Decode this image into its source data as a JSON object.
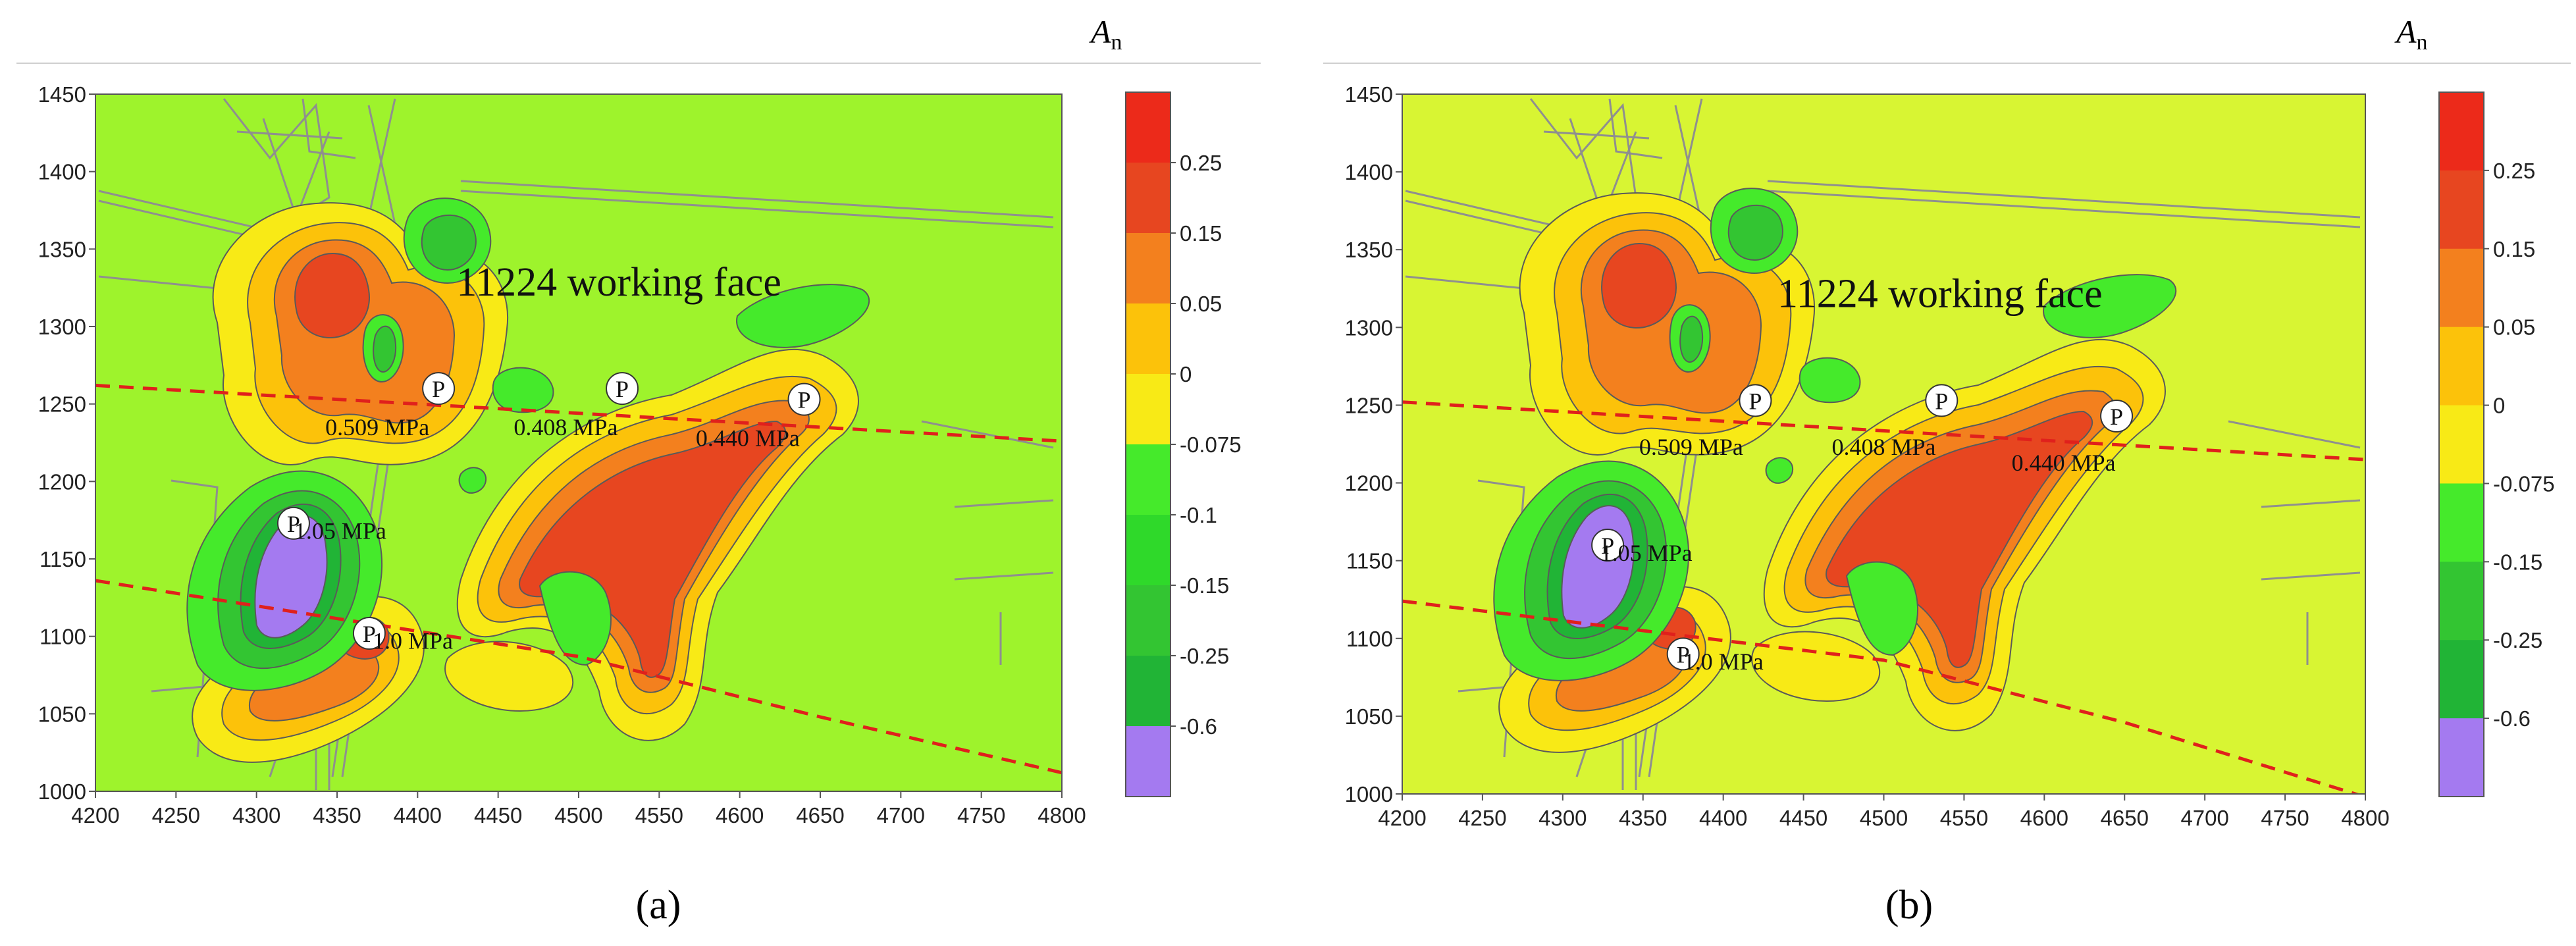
{
  "colors": {
    "background": "#9ef32c",
    "background_b": "#d8f533",
    "band_neg_0075": "#45ea2b",
    "band_neg_01": "#2fd92a",
    "band_neg_015": "#33c532",
    "band_neg_025": "#21b436",
    "band_neg_06": "#a47af0",
    "band_0": "#f8ea16",
    "band_005": "#fcc20a",
    "band_015": "#f3801e",
    "band_025": "#e74620",
    "band_top": "#ec2a1a",
    "dashed_line": "#e0201c"
  },
  "chart_data": [
    {
      "id": "a",
      "type": "heatmap",
      "subcaption": "(a)",
      "legend_title": "A",
      "legend_title_sub": "n",
      "x_range": [
        4200,
        4800
      ],
      "y_range": [
        1000,
        1450
      ],
      "x_ticks": [
        "4200",
        "4250",
        "4300",
        "4350",
        "4400",
        "4450",
        "4500",
        "4550",
        "4600",
        "4650",
        "4700",
        "4750",
        "4800"
      ],
      "y_ticks": [
        "1000",
        "1050",
        "1100",
        "1150",
        "1200",
        "1250",
        "1300",
        "1350",
        "1400",
        "1450"
      ],
      "colorbar_labels": [
        "0.25",
        "0.15",
        "0.05",
        "0",
        "-0.075",
        "-0.1",
        "-0.15",
        "-0.25",
        "-0.6"
      ],
      "working_face_label": "11224 working face",
      "working_face_at": [
        4525,
        1320
      ],
      "pressure_points": [
        {
          "symbol": "P",
          "x": 4413,
          "y": 1260,
          "label": "0.509 MPa",
          "label_at": [
            4375,
            1235
          ]
        },
        {
          "symbol": "P",
          "x": 4527,
          "y": 1260,
          "label": "0.408 MPa",
          "label_at": [
            4492,
            1235
          ]
        },
        {
          "symbol": "P",
          "x": 4640,
          "y": 1253,
          "label": "0.440 MPa",
          "label_at": [
            4605,
            1228
          ]
        },
        {
          "symbol": "P",
          "x": 4323,
          "y": 1173,
          "label": "1.05 MPa",
          "label_at": [
            4352,
            1168
          ]
        },
        {
          "symbol": "P",
          "x": 4370,
          "y": 1102,
          "label": "1.0 MPa",
          "label_at": [
            4397,
            1097
          ]
        }
      ],
      "dashed_lines": [
        [
          [
            4200,
            1262
          ],
          [
            4800,
            1226
          ]
        ],
        [
          [
            4200,
            1136
          ],
          [
            4500,
            1087
          ],
          [
            4650,
            1048
          ],
          [
            4800,
            1012
          ]
        ]
      ]
    },
    {
      "id": "b",
      "type": "heatmap",
      "subcaption": "(b)",
      "legend_title": "A",
      "legend_title_sub": "n",
      "x_range": [
        4200,
        4800
      ],
      "y_range": [
        1000,
        1450
      ],
      "x_ticks": [
        "4200",
        "4250",
        "4300",
        "4350",
        "4400",
        "4450",
        "4500",
        "4550",
        "4600",
        "4650",
        "4700",
        "4750",
        "4800"
      ],
      "y_ticks": [
        "1000",
        "1050",
        "1100",
        "1150",
        "1200",
        "1250",
        "1300",
        "1350",
        "1400",
        "1450"
      ],
      "colorbar_labels": [
        "0.25",
        "0.15",
        "0.05",
        "0",
        "-0.075",
        "-0.15",
        "-0.25",
        "-0.6"
      ],
      "working_face_label": "11224 working face",
      "working_face_at": [
        4535,
        1313
      ],
      "pressure_points": [
        {
          "symbol": "P",
          "x": 4420,
          "y": 1253,
          "label": "0.509 MPa",
          "label_at": [
            4380,
            1223
          ]
        },
        {
          "symbol": "P",
          "x": 4536,
          "y": 1253,
          "label": "0.408 MPa",
          "label_at": [
            4500,
            1223
          ]
        },
        {
          "symbol": "P",
          "x": 4645,
          "y": 1243,
          "label": "0.440 MPa",
          "label_at": [
            4612,
            1213
          ]
        },
        {
          "symbol": "P",
          "x": 4328,
          "y": 1160,
          "label": "1.05 MPa",
          "label_at": [
            4352,
            1155
          ]
        },
        {
          "symbol": "P",
          "x": 4375,
          "y": 1090,
          "label": "1.0 MPa",
          "label_at": [
            4400,
            1085
          ]
        }
      ],
      "dashed_lines": [
        [
          [
            4200,
            1252
          ],
          [
            4800,
            1215
          ]
        ],
        [
          [
            4200,
            1124
          ],
          [
            4500,
            1086
          ],
          [
            4650,
            1046
          ],
          [
            4800,
            998
          ]
        ]
      ]
    }
  ]
}
